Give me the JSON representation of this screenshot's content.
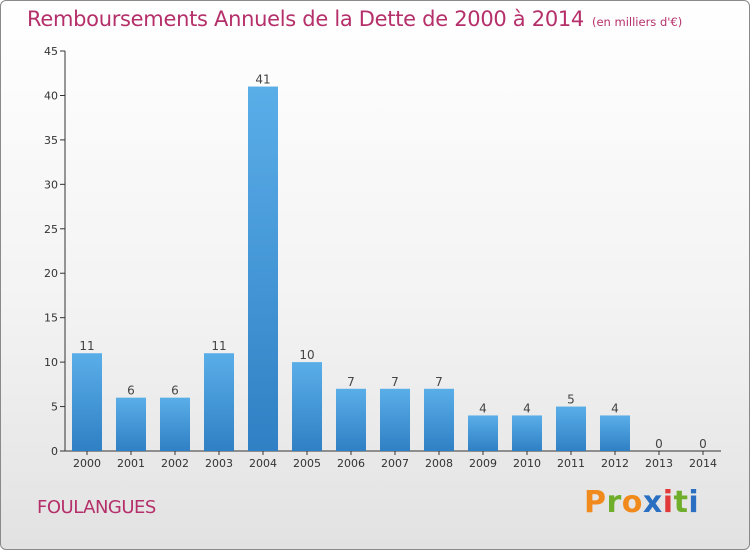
{
  "header": {
    "title": "Remboursements Annuels de la Dette de 2000 à 2014",
    "subtitle": "(en milliers d'€)"
  },
  "footer": {
    "location": "FOULANGUES",
    "brand": "Proxiti"
  },
  "colors": {
    "title": "#b5306a",
    "bar_light": "#5aaee8",
    "bar_dark": "#2f80c4",
    "brand_letters": [
      "#f08a1c",
      "#6fae2a",
      "#f08a1c",
      "#2b6fc2",
      "#e23a3a",
      "#6fae2a",
      "#2b6fc2"
    ]
  },
  "chart_data": {
    "type": "bar",
    "categories": [
      "2000",
      "2001",
      "2002",
      "2003",
      "2004",
      "2005",
      "2006",
      "2007",
      "2008",
      "2009",
      "2010",
      "2011",
      "2012",
      "2013",
      "2014"
    ],
    "values": [
      11,
      6,
      6,
      11,
      41,
      10,
      7,
      7,
      7,
      4,
      4,
      5,
      4,
      0,
      0
    ],
    "ylim": [
      0,
      45
    ],
    "yticks": [
      0,
      5,
      10,
      15,
      20,
      25,
      30,
      35,
      40,
      45
    ],
    "grid": false,
    "data_labels": true
  }
}
